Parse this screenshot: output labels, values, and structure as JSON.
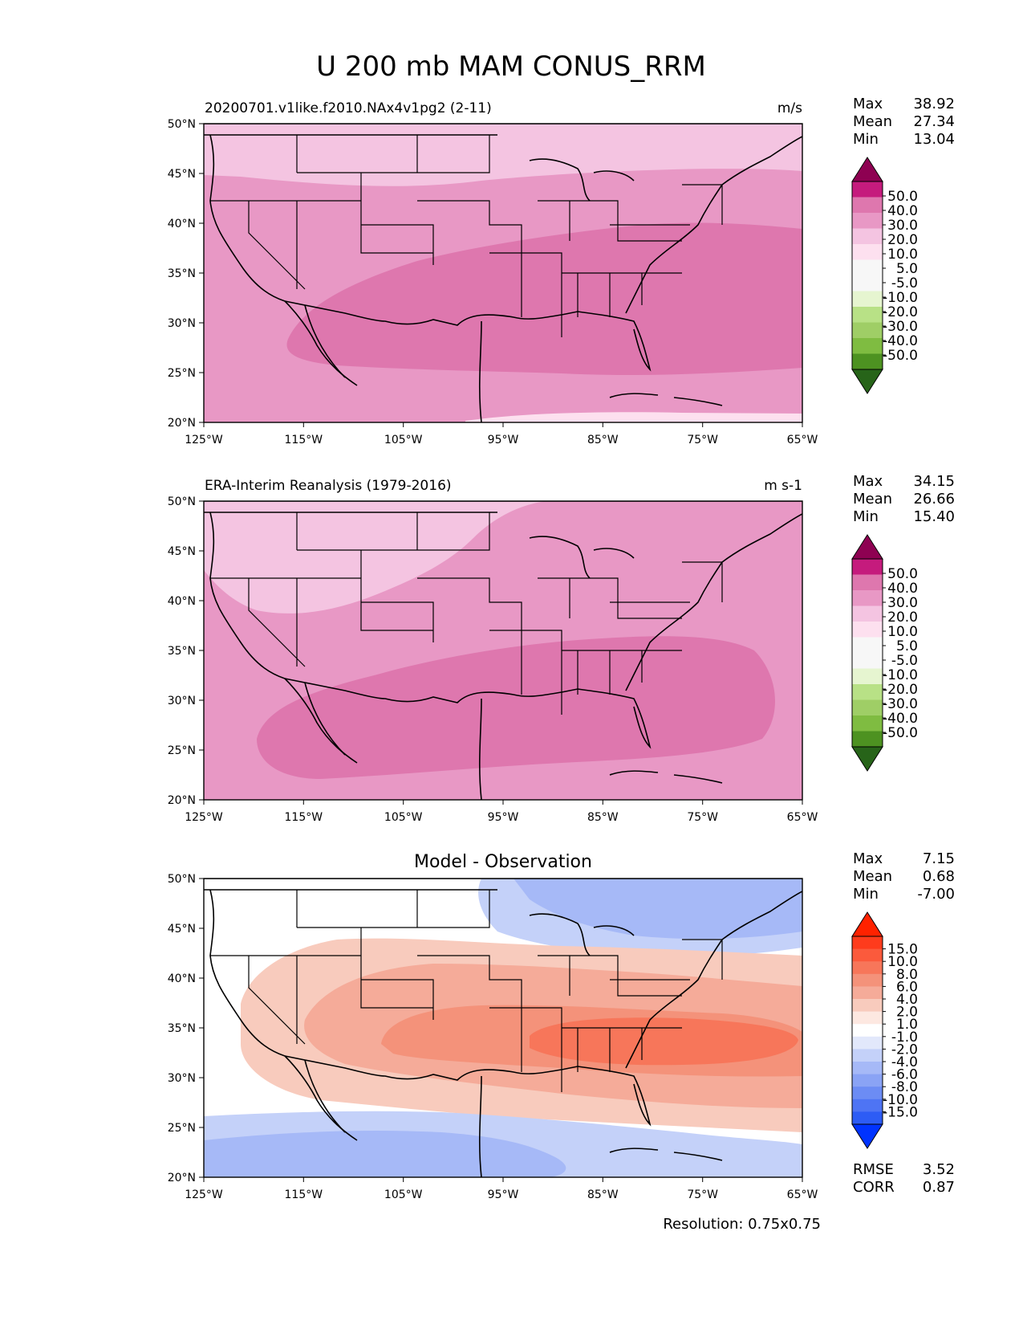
{
  "figure_title": "U 200 mb MAM CONUS_RRM",
  "resolution_note": "Resolution: 0.75x0.75",
  "chart_data": [
    {
      "type": "heatmap",
      "map": "CONUS",
      "title": "20200701.v1like.f2010.NAx4v1pg2 (2-11)",
      "units": "m/s",
      "stats": [
        {
          "label": "Max",
          "value": "38.92"
        },
        {
          "label": "Mean",
          "value": "27.34"
        },
        {
          "label": "Min",
          "value": "13.04"
        }
      ],
      "xlim": [
        -125,
        -65
      ],
      "ylim": [
        20,
        50
      ],
      "x_ticks": [
        "125°W",
        "115°W",
        "105°W",
        "95°W",
        "85°W",
        "75°W",
        "65°W"
      ],
      "y_ticks": [
        "50°N",
        "45°N",
        "40°N",
        "35°N",
        "30°N",
        "25°N",
        "20°N"
      ],
      "colorbar_levels": [
        "50.0",
        "40.0",
        "30.0",
        "20.0",
        "10.0",
        "5.0",
        "-5.0",
        "-10.0",
        "-20.0",
        "-30.0",
        "-40.0",
        "-50.0"
      ],
      "colorbar_colors": [
        "#8e0152",
        "#c51b7d",
        "#de77ae",
        "#e898c5",
        "#f4c4e1",
        "#fde0ef",
        "#f7f7f7",
        "#f7f7f7",
        "#e6f5d0",
        "#b8e186",
        "#9fce66",
        "#7fbc41",
        "#4d9221",
        "#276419"
      ],
      "field_bands": [
        {
          "level_range": "30-40",
          "description": "core from 120°W to 65°W, 25°N-37°N"
        },
        {
          "level_range": "20-30",
          "description": "surrounding broad region"
        },
        {
          "level_range": "10-20",
          "description": "north of 43°N in the west"
        }
      ]
    },
    {
      "type": "heatmap",
      "map": "CONUS",
      "title": "ERA-Interim Reanalysis (1979-2016)",
      "units": "m s-1",
      "stats": [
        {
          "label": "Max",
          "value": "34.15"
        },
        {
          "label": "Mean",
          "value": "26.66"
        },
        {
          "label": "Min",
          "value": "15.40"
        }
      ],
      "xlim": [
        -125,
        -65
      ],
      "ylim": [
        20,
        50
      ],
      "x_ticks": [
        "125°W",
        "115°W",
        "105°W",
        "95°W",
        "85°W",
        "75°W",
        "65°W"
      ],
      "y_ticks": [
        "50°N",
        "45°N",
        "40°N",
        "35°N",
        "30°N",
        "25°N",
        "20°N"
      ],
      "colorbar_levels": [
        "50.0",
        "40.0",
        "30.0",
        "20.0",
        "10.0",
        "5.0",
        "-5.0",
        "-10.0",
        "-20.0",
        "-30.0",
        "-40.0",
        "-50.0"
      ],
      "colorbar_colors": [
        "#8e0152",
        "#c51b7d",
        "#de77ae",
        "#e898c5",
        "#f4c4e1",
        "#fde0ef",
        "#f7f7f7",
        "#f7f7f7",
        "#e6f5d0",
        "#b8e186",
        "#9fce66",
        "#7fbc41",
        "#4d9221",
        "#276419"
      ],
      "field_bands": [
        {
          "level_range": "30-40",
          "description": "core from 120°W to 69°W, 24°N-36°N"
        },
        {
          "level_range": "20-30",
          "description": "surrounding broad region"
        },
        {
          "level_range": "10-20",
          "description": "northwest interior north of 38°N"
        }
      ]
    },
    {
      "type": "heatmap",
      "map": "CONUS",
      "title": "Model - Observation",
      "units": "",
      "stats": [
        {
          "label": "Max",
          "value": "7.15"
        },
        {
          "label": "Mean",
          "value": "0.68"
        },
        {
          "label": "Min",
          "value": "-7.00"
        }
      ],
      "extra_stats": [
        {
          "label": "RMSE",
          "value": "3.52"
        },
        {
          "label": "CORR",
          "value": "0.87"
        }
      ],
      "xlim": [
        -125,
        -65
      ],
      "ylim": [
        20,
        50
      ],
      "x_ticks": [
        "125°W",
        "115°W",
        "105°W",
        "95°W",
        "85°W",
        "75°W",
        "65°W"
      ],
      "y_ticks": [
        "50°N",
        "45°N",
        "40°N",
        "35°N",
        "30°N",
        "25°N",
        "20°N"
      ],
      "colorbar_levels": [
        "15.0",
        "10.0",
        "8.0",
        "6.0",
        "4.0",
        "2.0",
        "1.0",
        "-1.0",
        "-2.0",
        "-4.0",
        "-6.0",
        "-8.0",
        "-10.0",
        "-15.0"
      ],
      "colorbar_colors": [
        "#ff2200",
        "#fe3b1c",
        "#fb5a3c",
        "#f7765a",
        "#f4927a",
        "#f5ab99",
        "#f8cbbd",
        "#fde8e1",
        "#ffffff",
        "#e2e8fb",
        "#c4d1f9",
        "#a6b9f7",
        "#8aa3f5",
        "#6c8cf4",
        "#4e74f4",
        "#2d5cf5",
        "#0033ff"
      ],
      "field_bands": [
        {
          "level_range": "4 to 6",
          "description": "southeast core near 34°N"
        },
        {
          "level_range": "2 to 4",
          "description": "central belt"
        },
        {
          "level_range": "1 to 2",
          "description": "outer positive belt"
        },
        {
          "level_range": "-4 to -2",
          "description": "northeast near 47°N and southwest near 22°N"
        },
        {
          "level_range": "-2 to -1",
          "description": "margins of negative areas"
        }
      ]
    }
  ]
}
